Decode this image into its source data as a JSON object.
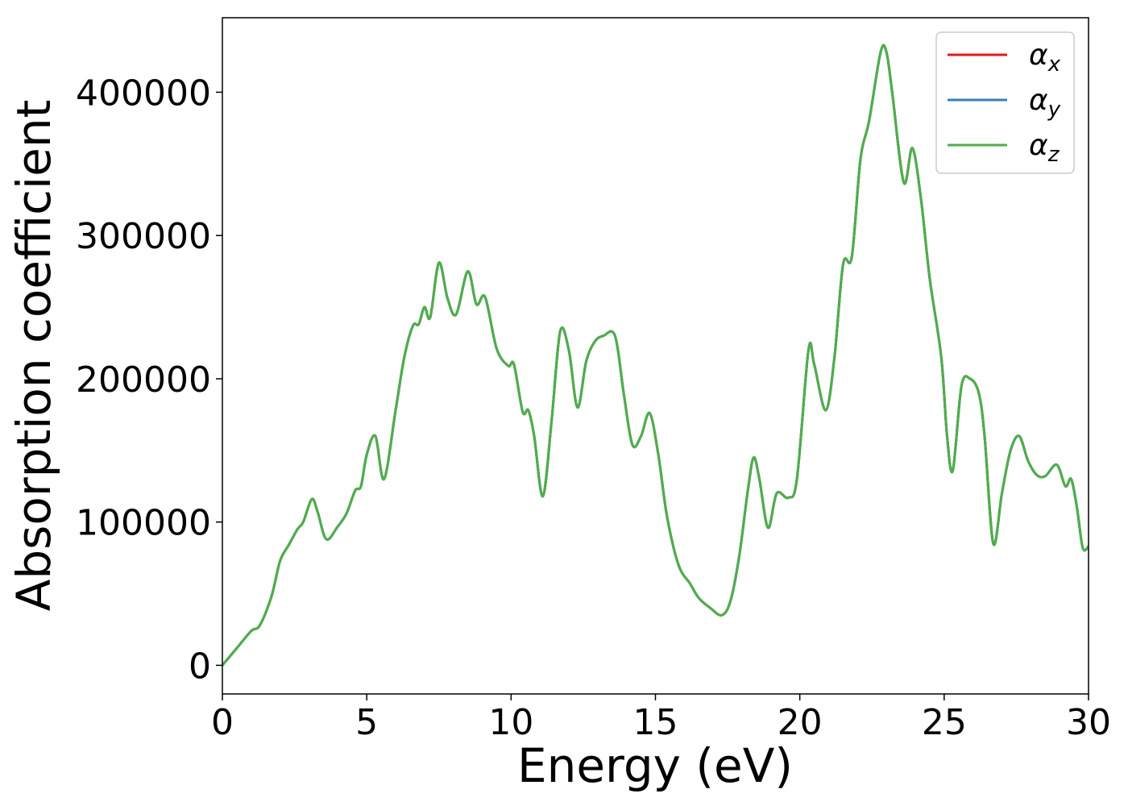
{
  "chart_data": {
    "type": "line",
    "title": "",
    "xlabel": "Energy (eV)",
    "ylabel": "Absorption coefficient",
    "xlim": [
      0,
      30
    ],
    "ylim": [
      -20000,
      452000
    ],
    "xticks": [
      0,
      5,
      10,
      15,
      20,
      25,
      30
    ],
    "yticks": [
      0,
      100000,
      200000,
      300000,
      400000
    ],
    "xtick_labels": [
      "0",
      "5",
      "10",
      "15",
      "20",
      "25",
      "30"
    ],
    "ytick_labels": [
      "0",
      "100000",
      "200000",
      "300000",
      "400000"
    ],
    "grid": false,
    "legend_position": "top-right",
    "x": [
      0,
      0.5,
      1.0,
      1.3,
      1.7,
      2.0,
      2.3,
      2.6,
      2.8,
      3.1,
      3.3,
      3.6,
      4.0,
      4.3,
      4.6,
      4.8,
      5.0,
      5.3,
      5.6,
      6.0,
      6.3,
      6.6,
      6.8,
      7.0,
      7.2,
      7.5,
      7.8,
      8.1,
      8.5,
      8.8,
      9.1,
      9.5,
      9.9,
      10.1,
      10.4,
      10.6,
      10.8,
      11.1,
      11.4,
      11.7,
      12.0,
      12.3,
      12.6,
      12.9,
      13.2,
      13.6,
      13.9,
      14.2,
      14.5,
      14.8,
      15.1,
      15.4,
      15.8,
      16.2,
      16.5,
      16.9,
      17.3,
      17.6,
      17.9,
      18.2,
      18.4,
      18.6,
      18.9,
      19.2,
      19.6,
      19.9,
      20.3,
      20.5,
      20.9,
      21.2,
      21.5,
      21.8,
      22.1,
      22.4,
      22.8,
      23.0,
      23.2,
      23.6,
      23.9,
      24.2,
      24.5,
      24.9,
      25.1,
      25.3,
      25.6,
      25.9,
      26.2,
      26.4,
      26.7,
      27.0,
      27.3,
      27.6,
      27.9,
      28.2,
      28.5,
      28.9,
      29.2,
      29.4,
      29.6,
      29.8,
      30.0
    ],
    "series": [
      {
        "name": "α_x",
        "color": "#e31a1c",
        "y": [
          0,
          12000,
          24000,
          28000,
          48000,
          73000,
          84000,
          95000,
          100000,
          116000,
          107000,
          88000,
          97000,
          106000,
          122000,
          125000,
          147000,
          160000,
          130000,
          178000,
          215000,
          237000,
          238000,
          250000,
          243000,
          281000,
          256000,
          245000,
          275000,
          252000,
          257000,
          221000,
          209000,
          210000,
          177000,
          178000,
          160000,
          118000,
          170000,
          233000,
          220000,
          180000,
          212000,
          226000,
          230000,
          230000,
          190000,
          154000,
          160000,
          176000,
          147000,
          104000,
          70000,
          57000,
          47000,
          40000,
          35000,
          45000,
          76000,
          122000,
          145000,
          130000,
          96000,
          120000,
          117000,
          130000,
          220000,
          210000,
          178000,
          215000,
          280000,
          285000,
          353000,
          380000,
          428000,
          428000,
          400000,
          337000,
          361000,
          325000,
          270000,
          215000,
          160000,
          136000,
          195000,
          200000,
          190000,
          160000,
          85000,
          120000,
          150000,
          160000,
          143000,
          133000,
          132000,
          140000,
          125000,
          130000,
          110000,
          82000,
          83000
        ]
      },
      {
        "name": "α_y",
        "color": "#377eb8",
        "y": [
          0,
          12000,
          24000,
          28000,
          48000,
          73000,
          84000,
          95000,
          100000,
          116000,
          107000,
          88000,
          97000,
          106000,
          122000,
          125000,
          147000,
          160000,
          130000,
          178000,
          215000,
          237000,
          238000,
          250000,
          243000,
          281000,
          256000,
          245000,
          275000,
          252000,
          257000,
          221000,
          209000,
          210000,
          177000,
          178000,
          160000,
          118000,
          170000,
          233000,
          220000,
          180000,
          212000,
          226000,
          230000,
          230000,
          190000,
          154000,
          160000,
          176000,
          147000,
          104000,
          70000,
          57000,
          47000,
          40000,
          35000,
          45000,
          76000,
          122000,
          145000,
          130000,
          96000,
          120000,
          117000,
          130000,
          220000,
          210000,
          178000,
          215000,
          280000,
          285000,
          353000,
          380000,
          428000,
          428000,
          400000,
          337000,
          361000,
          325000,
          270000,
          215000,
          160000,
          136000,
          195000,
          200000,
          190000,
          160000,
          85000,
          120000,
          150000,
          160000,
          143000,
          133000,
          132000,
          140000,
          125000,
          130000,
          110000,
          82000,
          83000
        ]
      },
      {
        "name": "α_z",
        "color": "#4daf4a",
        "y": [
          0,
          12000,
          24000,
          28000,
          48000,
          73000,
          84000,
          95000,
          100000,
          116000,
          107000,
          88000,
          97000,
          106000,
          122000,
          125000,
          147000,
          160000,
          130000,
          178000,
          215000,
          237000,
          238000,
          250000,
          243000,
          281000,
          256000,
          245000,
          275000,
          252000,
          257000,
          221000,
          209000,
          210000,
          177000,
          178000,
          160000,
          118000,
          170000,
          233000,
          220000,
          180000,
          212000,
          226000,
          230000,
          230000,
          190000,
          154000,
          160000,
          176000,
          147000,
          104000,
          70000,
          57000,
          47000,
          40000,
          35000,
          45000,
          76000,
          122000,
          145000,
          130000,
          96000,
          120000,
          117000,
          130000,
          220000,
          210000,
          178000,
          215000,
          280000,
          285000,
          353000,
          380000,
          428000,
          428000,
          400000,
          337000,
          361000,
          325000,
          270000,
          215000,
          160000,
          136000,
          195000,
          200000,
          190000,
          160000,
          85000,
          120000,
          150000,
          160000,
          143000,
          133000,
          132000,
          140000,
          125000,
          130000,
          110000,
          82000,
          83000
        ]
      }
    ],
    "legend": [
      {
        "symbol": "α",
        "subscript": "x",
        "color": "#e31a1c"
      },
      {
        "symbol": "α",
        "subscript": "y",
        "color": "#377eb8"
      },
      {
        "symbol": "α",
        "subscript": "z",
        "color": "#4daf4a"
      }
    ]
  }
}
